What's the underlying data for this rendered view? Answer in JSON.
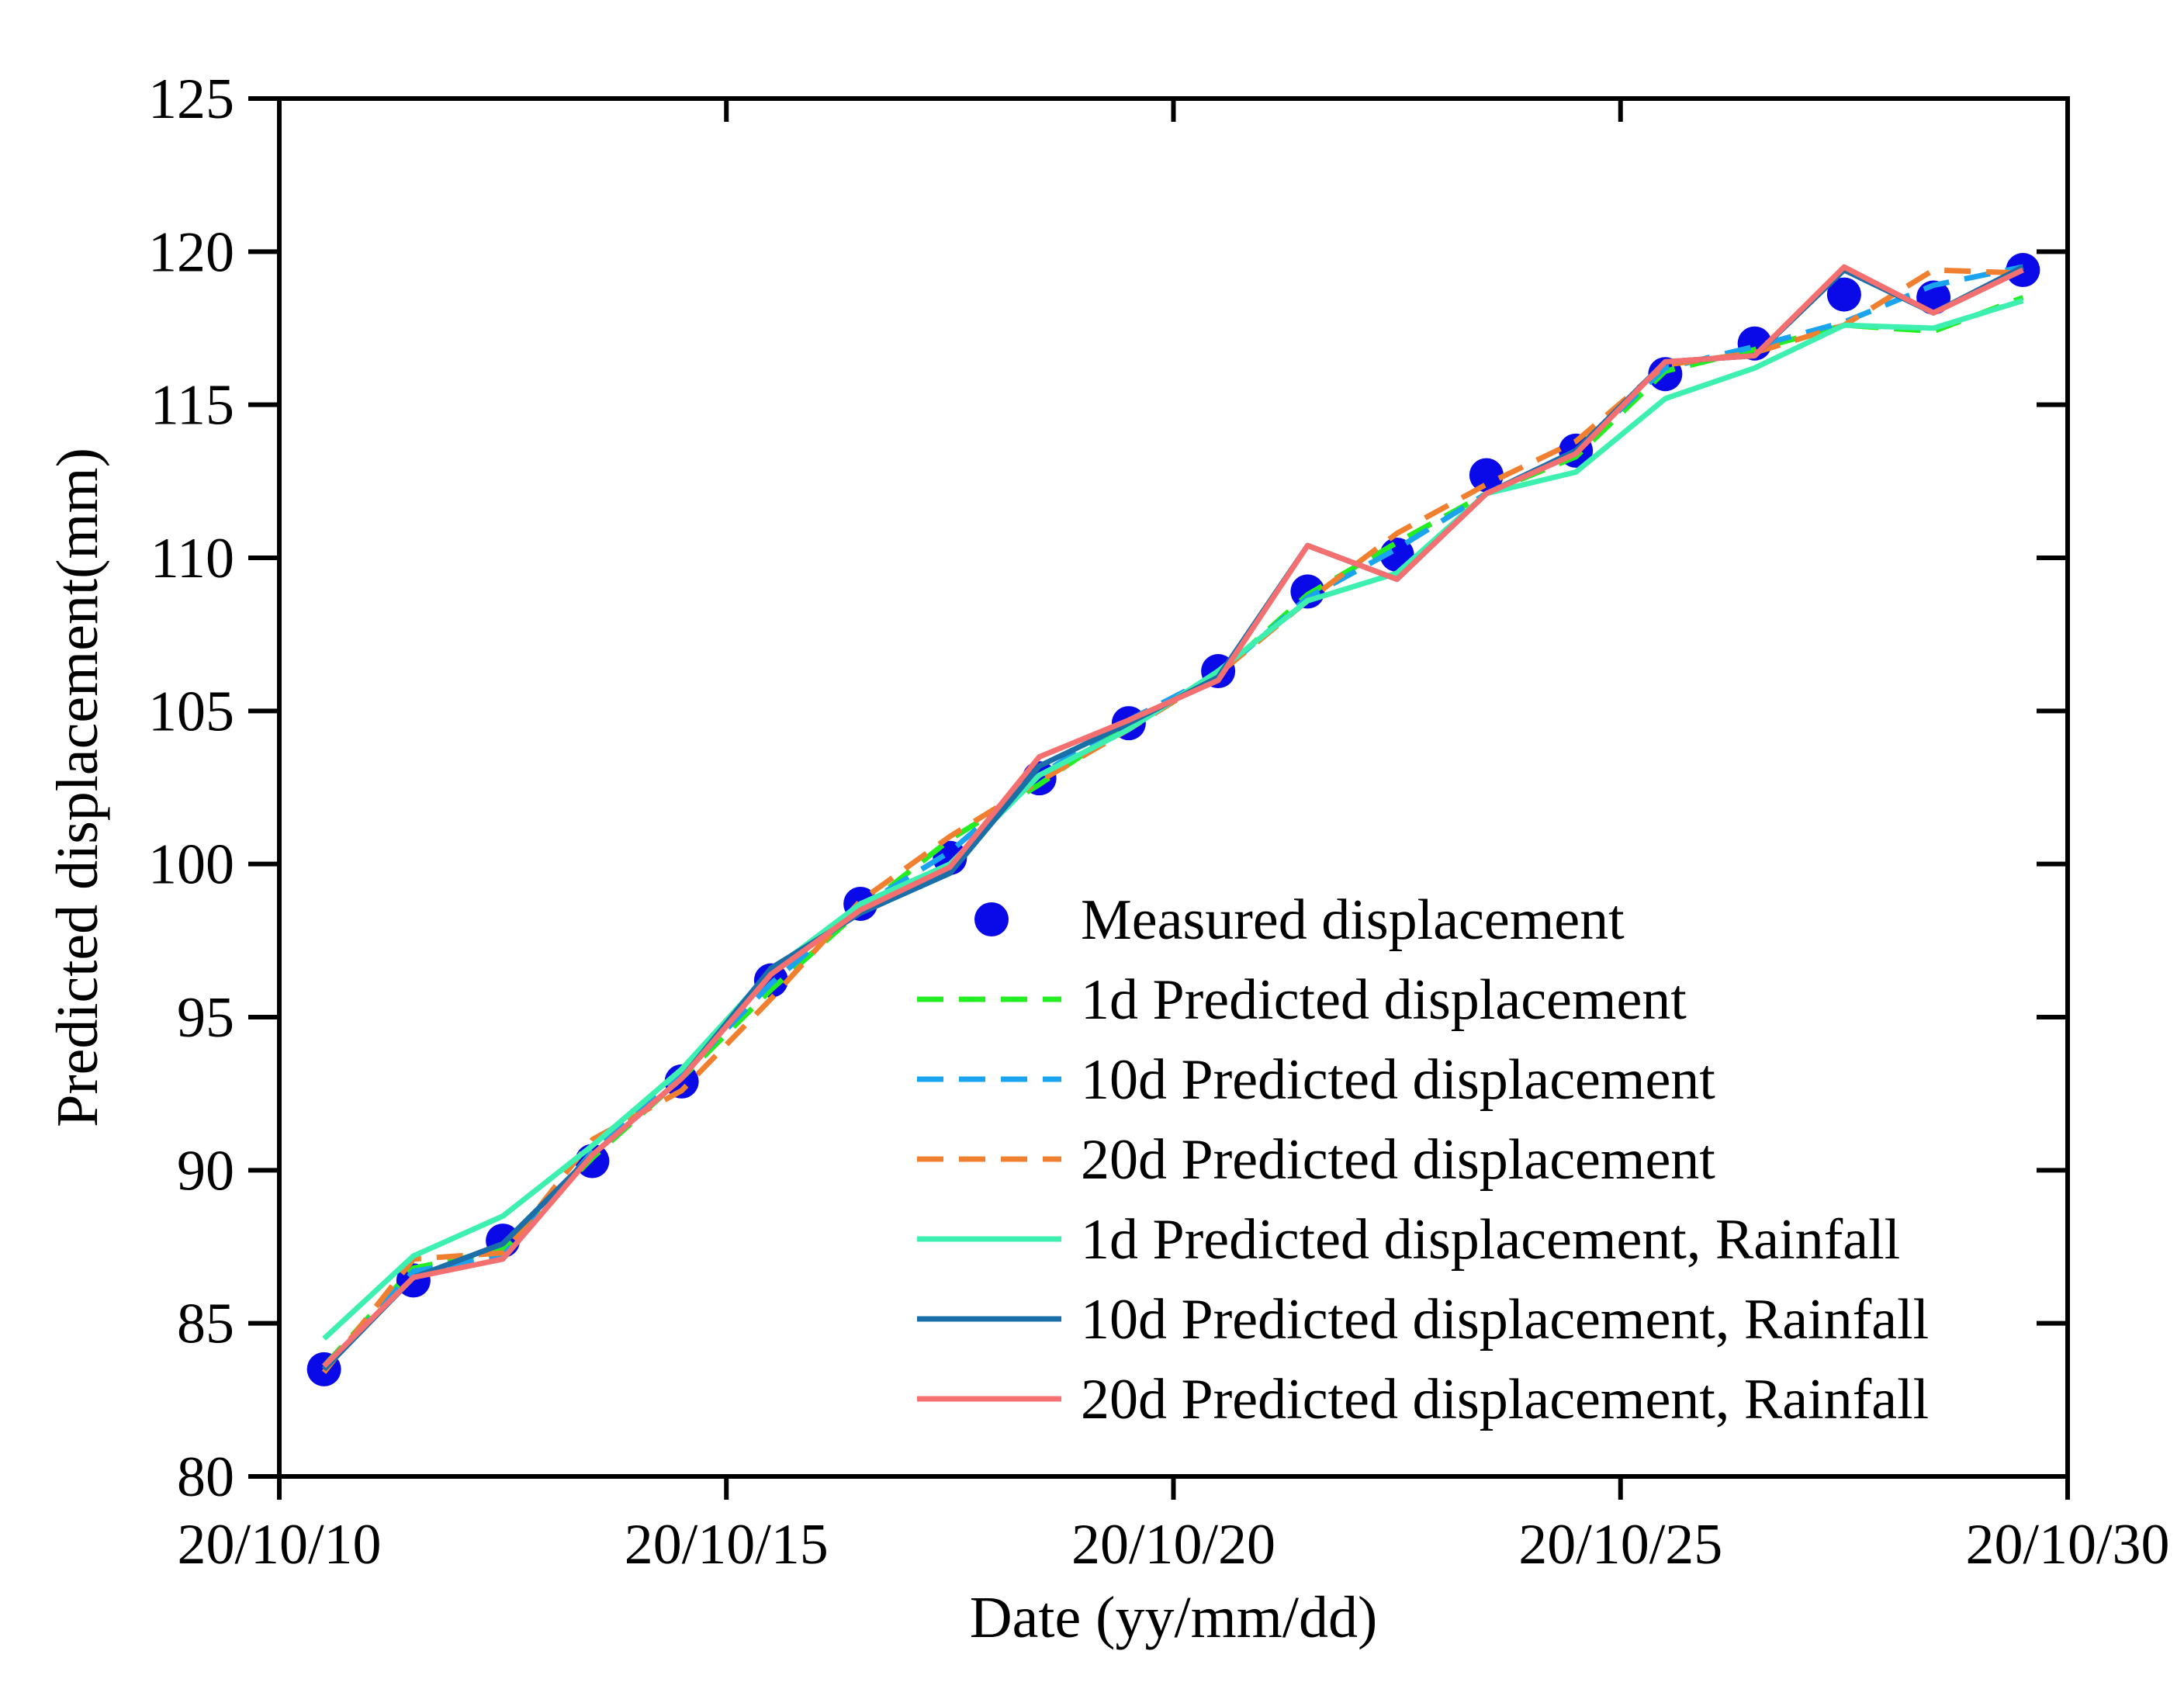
{
  "chart_data": {
    "type": "line",
    "xlabel": "Date (yy/mm/dd)",
    "ylabel": "Predicted displacement(mm)",
    "xlim": [
      0,
      20
    ],
    "ylim": [
      80,
      125
    ],
    "x_ticks": [
      {
        "value": 0,
        "label": "20/10/10"
      },
      {
        "value": 5,
        "label": "20/10/15"
      },
      {
        "value": 10,
        "label": "20/10/20"
      },
      {
        "value": 15,
        "label": "20/10/25"
      },
      {
        "value": 20,
        "label": "20/10/30"
      }
    ],
    "y_ticks": [
      {
        "value": 80,
        "label": "80"
      },
      {
        "value": 85,
        "label": "85"
      },
      {
        "value": 90,
        "label": "90"
      },
      {
        "value": 95,
        "label": "95"
      },
      {
        "value": 100,
        "label": "100"
      },
      {
        "value": 105,
        "label": "105"
      },
      {
        "value": 110,
        "label": "110"
      },
      {
        "value": 115,
        "label": "115"
      },
      {
        "value": 120,
        "label": "120"
      },
      {
        "value": 125,
        "label": "125"
      }
    ],
    "x": [
      0.5,
      1.5,
      2.5,
      3.5,
      4.5,
      5.5,
      6.5,
      7.5,
      8.5,
      9.5,
      10.5,
      11.5,
      12.5,
      13.5,
      14.5,
      15.5,
      16.5,
      17.5,
      18.5,
      19.5
    ],
    "series": [
      {
        "name": "Measured displacement",
        "style": "marker",
        "color": "#0a0ae8",
        "values": [
          83.5,
          86.4,
          87.7,
          90.3,
          92.9,
          96.2,
          98.7,
          100.2,
          102.8,
          104.6,
          106.3,
          108.9,
          110.1,
          112.7,
          113.5,
          116.0,
          117.0,
          118.6,
          118.5,
          119.4
        ]
      },
      {
        "name": "1d Predicted displacement",
        "style": "dashed",
        "color": "#22ee22",
        "values": [
          83.6,
          86.8,
          87.4,
          90.4,
          93.0,
          95.9,
          98.5,
          100.8,
          102.6,
          104.6,
          106.2,
          108.8,
          110.5,
          112.1,
          113.3,
          116.1,
          116.8,
          117.6,
          117.4,
          118.5
        ]
      },
      {
        "name": "10d Predicted displacement",
        "style": "dashed",
        "color": "#1aa3ee",
        "values": [
          83.5,
          86.7,
          87.2,
          90.6,
          93.1,
          96.1,
          98.6,
          100.4,
          102.9,
          104.7,
          106.2,
          108.7,
          110.3,
          112.1,
          113.5,
          116.2,
          116.9,
          117.7,
          118.9,
          119.5
        ]
      },
      {
        "name": "20d Predicted displacement",
        "style": "dashed",
        "color": "#f08030",
        "values": [
          83.4,
          87.1,
          87.3,
          91.0,
          92.6,
          95.6,
          98.8,
          100.9,
          102.7,
          104.4,
          106.2,
          108.6,
          110.8,
          112.4,
          113.8,
          116.3,
          116.7,
          117.6,
          119.4,
          119.3
        ]
      },
      {
        "name": "1d Predicted displacement, Rainfall",
        "style": "solid",
        "color": "#3df0b0",
        "values": [
          84.5,
          87.2,
          88.5,
          90.8,
          93.3,
          96.5,
          98.7,
          100.0,
          102.9,
          104.4,
          106.3,
          108.6,
          109.5,
          112.1,
          112.8,
          115.2,
          116.2,
          117.6,
          117.5,
          118.4
        ]
      },
      {
        "name": "10d Predicted displacement, Rainfall",
        "style": "solid",
        "color": "#1a6fa8",
        "values": [
          83.5,
          86.5,
          87.6,
          90.5,
          93.0,
          96.6,
          98.4,
          99.7,
          103.2,
          104.6,
          106.1,
          110.4,
          109.3,
          112.1,
          113.5,
          116.4,
          116.6,
          119.4,
          118.0,
          119.5
        ]
      },
      {
        "name": "20d Predicted displacement, Rainfall",
        "style": "solid",
        "color": "#f47070",
        "values": [
          83.6,
          86.5,
          87.1,
          90.5,
          93.0,
          96.4,
          98.5,
          99.9,
          103.5,
          104.7,
          106.0,
          110.4,
          109.3,
          112.1,
          113.4,
          116.4,
          116.6,
          119.5,
          118.0,
          119.4
        ]
      }
    ],
    "legend_position": "lower-right",
    "grid": false
  }
}
